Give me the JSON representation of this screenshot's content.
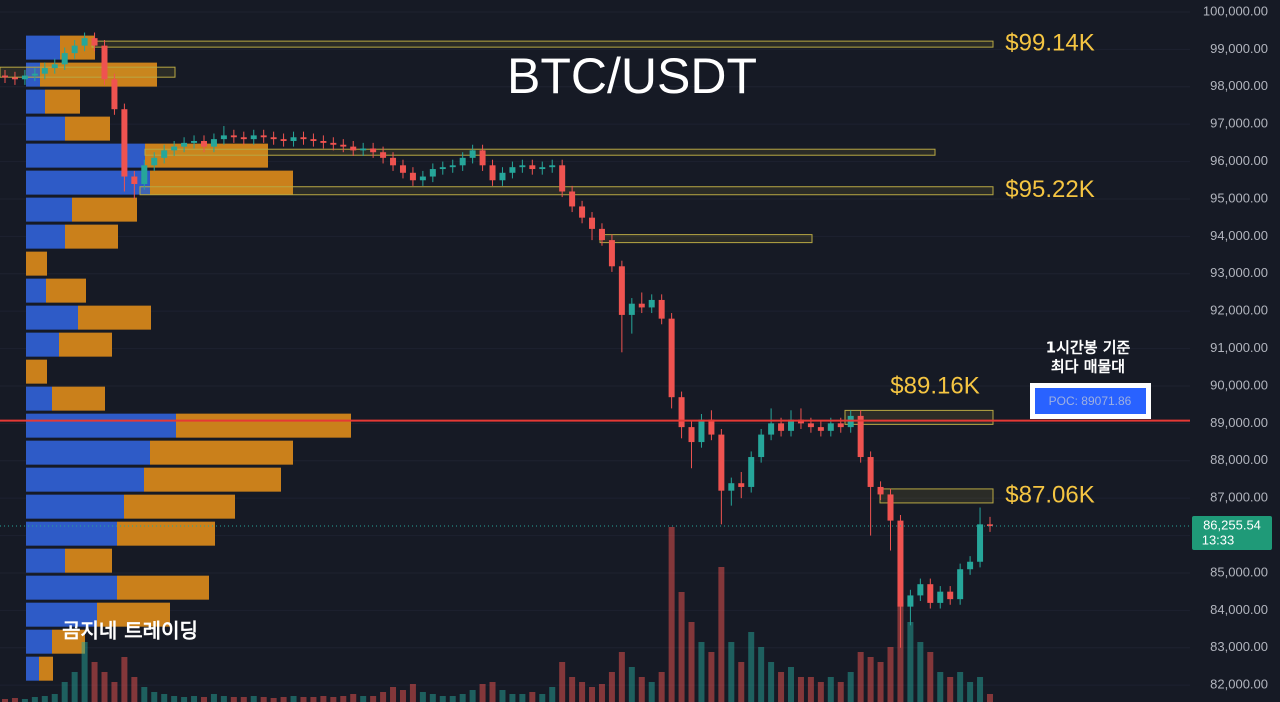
{
  "chart_data": {
    "type": "candlestick",
    "title": "BTC/USDT",
    "ylim": [
      81550,
      100320
    ],
    "yticks": [
      {
        "value": 100000,
        "label": "100,000.00"
      },
      {
        "value": 99000,
        "label": "99,000.00"
      },
      {
        "value": 98000,
        "label": "98,000.00"
      },
      {
        "value": 97000,
        "label": "97,000.00"
      },
      {
        "value": 96000,
        "label": "96,000.00"
      },
      {
        "value": 95000,
        "label": "95,000.00"
      },
      {
        "value": 94000,
        "label": "94,000.00"
      },
      {
        "value": 93000,
        "label": "93,000.00"
      },
      {
        "value": 92000,
        "label": "92,000.00"
      },
      {
        "value": 91000,
        "label": "91,000.00"
      },
      {
        "value": 90000,
        "label": "90,000.00"
      },
      {
        "value": 89000,
        "label": "89,000.00"
      },
      {
        "value": 88000,
        "label": "88,000.00"
      },
      {
        "value": 87000,
        "label": "87,000.00"
      },
      {
        "value": 86000,
        "label": "86,000.00"
      },
      {
        "value": 85000,
        "label": "85,000.00"
      },
      {
        "value": 84000,
        "label": "84,000.00"
      },
      {
        "value": 83000,
        "label": "83,000.00"
      },
      {
        "value": 82000,
        "label": "82,000.00"
      }
    ],
    "up_color": "#26a69a",
    "down_color": "#ef5350",
    "open": [
      98300,
      98250,
      98200,
      98300,
      98350,
      98500,
      98600,
      98900,
      99100,
      99300,
      99100,
      98200,
      97400,
      95600,
      95400,
      95900,
      96100,
      96300,
      96400,
      96500,
      96550,
      96400,
      96600,
      96700,
      96650,
      96600,
      96700,
      96650,
      96600,
      96550,
      96650,
      96600,
      96550,
      96500,
      96450,
      96400,
      96300,
      96350,
      96250,
      96100,
      95900,
      95700,
      95500,
      95600,
      95800,
      95850,
      95900,
      96100,
      96300,
      95900,
      95500,
      95700,
      95850,
      95900,
      95800,
      95850,
      95900,
      95200,
      94800,
      94500,
      94200,
      93900,
      93200,
      91900,
      92200,
      92100,
      92300,
      91800,
      89700,
      88900,
      88500,
      89100,
      88700,
      87200,
      87400,
      87300,
      88100,
      88700,
      89000,
      88800,
      89100,
      89000,
      88900,
      88800,
      89000,
      88900,
      89200,
      88100,
      87300,
      87100,
      86400,
      84100,
      84400,
      84700,
      84200,
      84500,
      84300,
      85100,
      85300,
      86300
    ],
    "high": [
      98450,
      98400,
      98450,
      98500,
      98650,
      98750,
      99050,
      99250,
      99450,
      99450,
      99250,
      98350,
      97550,
      95750,
      96050,
      96250,
      96450,
      96550,
      96650,
      96700,
      96700,
      96750,
      96950,
      96850,
      96800,
      96850,
      96850,
      96800,
      96750,
      96800,
      96800,
      96750,
      96700,
      96650,
      96600,
      96550,
      96500,
      96500,
      96400,
      96250,
      96050,
      95850,
      95750,
      95950,
      96000,
      96050,
      96250,
      96450,
      96450,
      96050,
      95850,
      96000,
      96050,
      96050,
      96000,
      96050,
      96050,
      95350,
      94950,
      94650,
      94350,
      94050,
      93350,
      92350,
      92500,
      92450,
      92450,
      91950,
      89850,
      89050,
      89250,
      89350,
      88850,
      87550,
      87700,
      88250,
      88850,
      89400,
      89150,
      89350,
      89400,
      89150,
      89050,
      89150,
      89150,
      89350,
      89350,
      88250,
      87450,
      87250,
      86550,
      84550,
      84850,
      84850,
      84650,
      84650,
      85250,
      85450,
      86750,
      86500
    ],
    "low": [
      98100,
      98050,
      98050,
      98150,
      98200,
      98350,
      98450,
      98750,
      98950,
      98950,
      98050,
      97250,
      95200,
      95000,
      95250,
      95750,
      95950,
      96150,
      96250,
      96350,
      96250,
      96250,
      96450,
      96500,
      96450,
      96450,
      96500,
      96450,
      96400,
      96400,
      96450,
      96400,
      96350,
      96300,
      96250,
      96150,
      96150,
      96100,
      95950,
      95750,
      95550,
      95350,
      95350,
      95450,
      95650,
      95700,
      95750,
      95950,
      95750,
      95350,
      95350,
      95550,
      95700,
      95650,
      95650,
      95700,
      95050,
      94650,
      94350,
      93900,
      93750,
      93050,
      90900,
      91400,
      91950,
      91950,
      91650,
      89400,
      88600,
      87800,
      88350,
      88550,
      86300,
      86800,
      87000,
      87150,
      87950,
      88550,
      88650,
      88650,
      88850,
      88750,
      88650,
      88650,
      88750,
      88750,
      87950,
      86000,
      86950,
      85600,
      83000,
      83600,
      84250,
      84050,
      84050,
      84150,
      84150,
      84950,
      85150,
      86100
    ],
    "close": [
      98250,
      98200,
      98300,
      98350,
      98500,
      98600,
      98900,
      99100,
      99300,
      99100,
      98200,
      97400,
      95600,
      95400,
      95900,
      96100,
      96300,
      96400,
      96500,
      96550,
      96400,
      96600,
      96700,
      96650,
      96600,
      96700,
      96650,
      96600,
      96550,
      96650,
      96600,
      96550,
      96500,
      96450,
      96400,
      96300,
      96350,
      96250,
      96100,
      95900,
      95700,
      95500,
      95600,
      95800,
      95850,
      95900,
      96100,
      96300,
      95900,
      95500,
      95700,
      95850,
      95900,
      95800,
      95850,
      95900,
      95200,
      94800,
      94500,
      94200,
      93900,
      93200,
      91900,
      92200,
      92100,
      92300,
      91800,
      89700,
      88900,
      88500,
      89100,
      88700,
      87200,
      87400,
      87300,
      88100,
      88700,
      89000,
      88800,
      89100,
      89000,
      88900,
      88800,
      89000,
      88900,
      89200,
      88100,
      87300,
      87100,
      86400,
      84100,
      84400,
      84700,
      84200,
      84500,
      84300,
      85100,
      85300,
      86300,
      86255.54
    ],
    "volume": [
      3,
      4,
      3,
      5,
      6,
      8,
      20,
      30,
      60,
      40,
      30,
      20,
      45,
      25,
      15,
      10,
      8,
      6,
      5,
      6,
      5,
      8,
      6,
      5,
      5,
      6,
      5,
      4,
      5,
      6,
      5,
      5,
      6,
      5,
      6,
      8,
      6,
      6,
      10,
      15,
      12,
      18,
      10,
      8,
      6,
      6,
      8,
      12,
      18,
      20,
      12,
      8,
      8,
      10,
      8,
      15,
      40,
      25,
      20,
      15,
      18,
      30,
      50,
      35,
      25,
      20,
      30,
      175,
      110,
      80,
      60,
      50,
      135,
      60,
      40,
      70,
      55,
      40,
      30,
      35,
      25,
      25,
      20,
      25,
      20,
      30,
      50,
      45,
      40,
      55,
      100,
      80,
      60,
      50,
      30,
      25,
      30,
      20,
      25,
      8
    ],
    "volume_profile": {
      "bins": [
        82080,
        82802,
        83524,
        84246,
        84968,
        85690,
        86412,
        87134,
        87856,
        88578,
        89300,
        90022,
        90744,
        91466,
        92188,
        92910,
        93632,
        94354,
        95076,
        95798,
        96520,
        97242,
        97964,
        98686,
        99408
      ],
      "buy": [
        13,
        26,
        71,
        91,
        39,
        91,
        98,
        118,
        124,
        150,
        26,
        0,
        33,
        52,
        20,
        0,
        39,
        46,
        124,
        119,
        39,
        19,
        14,
        34
      ],
      "sell": [
        14,
        33,
        73,
        92,
        47,
        98,
        111,
        137,
        143,
        175,
        53,
        21,
        53,
        73,
        40,
        21,
        53,
        65,
        143,
        123,
        45,
        35,
        117,
        35
      ],
      "buy_color": "#2f5fd0",
      "sell_color": "#d4861a"
    },
    "zones": [
      {
        "value": 99140,
        "label": "$99.14K"
      },
      {
        "value": 98390,
        "label": null
      },
      {
        "value": 96250,
        "label": null
      },
      {
        "value": 95220,
        "label": "$95.22K"
      },
      {
        "value": 93940,
        "label": null
      },
      {
        "value": 89160,
        "label": "$89.16K"
      },
      {
        "value": 87060,
        "label": "$87.06K"
      }
    ],
    "poc": {
      "value": 89071.86,
      "label": "POC: 89071.86",
      "note": [
        "1시간봉 기준",
        "최다 매물대"
      ]
    },
    "last_price": {
      "value": 86255.54,
      "label": "86,255.54",
      "countdown": "13:33"
    },
    "watermark": "곰지네 트레이딩"
  }
}
